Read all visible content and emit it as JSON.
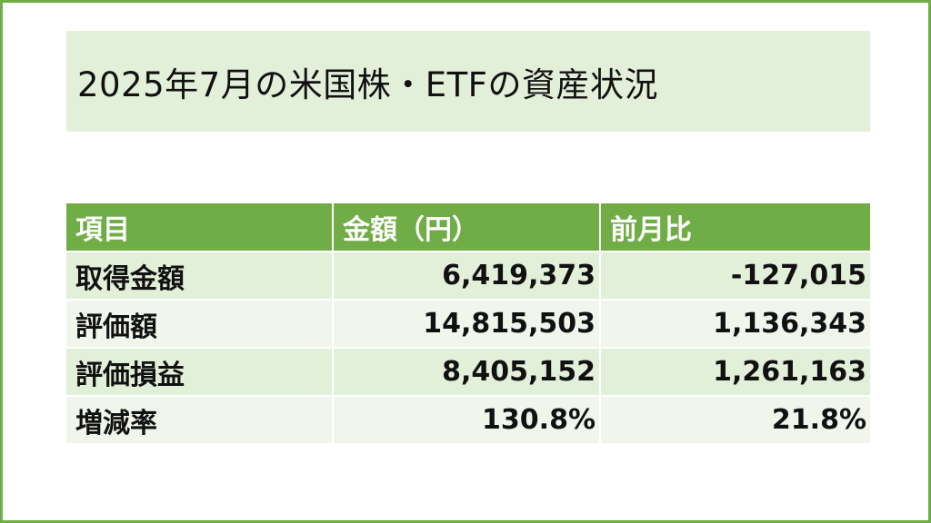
{
  "title": "2025年7月の米国株・ETFの資産状況",
  "table": {
    "headers": [
      "項目",
      "金額（円）",
      "前月比"
    ],
    "rows": [
      {
        "label": "取得金額",
        "amount": "6,419,373",
        "change": "-127,015"
      },
      {
        "label": "評価額",
        "amount": "14,815,503",
        "change": "1,136,343"
      },
      {
        "label": "評価損益",
        "amount": "8,405,152",
        "change": "1,261,163"
      },
      {
        "label": "増減率",
        "amount": "130.8%",
        "change": "21.8%"
      }
    ]
  },
  "colors": {
    "accent": "#70ad47",
    "light_fill": "#e2efd9",
    "lighter_fill": "#f0f6ec",
    "text": "#111111"
  }
}
